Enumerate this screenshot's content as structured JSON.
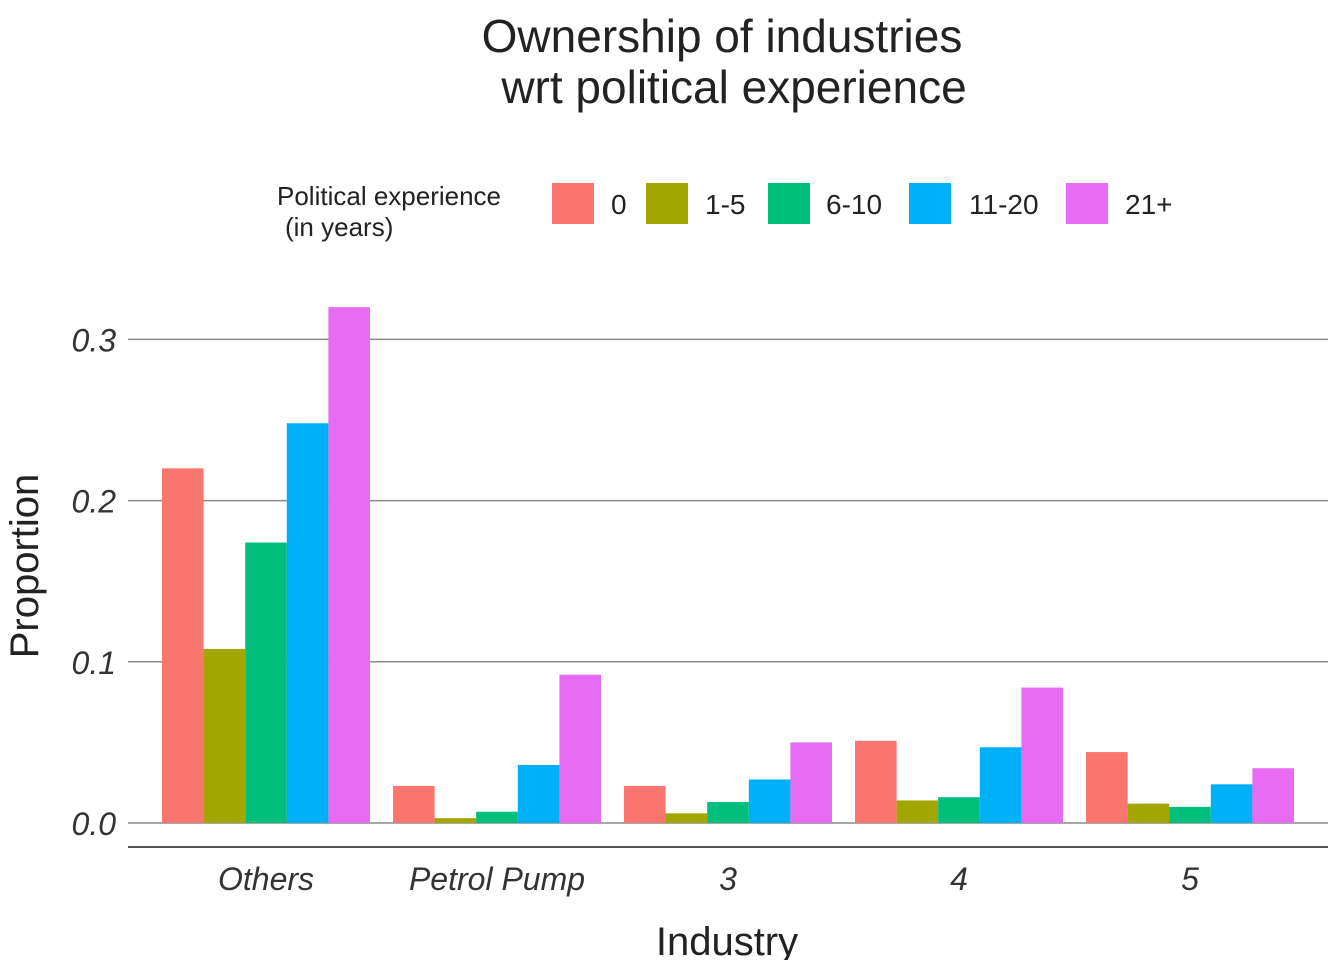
{
  "chart_data": {
    "type": "bar",
    "title_lines": [
      "Ownership of industries",
      "wrt political experience"
    ],
    "xlabel": "Industry",
    "ylabel": "Proportion",
    "legend": {
      "title_lines": [
        "Political experience",
        "(in years)"
      ],
      "position": "top"
    },
    "categories": [
      "Others",
      "Petrol Pump",
      "3",
      "4",
      "5"
    ],
    "series": [
      {
        "name": "0",
        "color": "#F8766D",
        "values": [
          0.22,
          0.023,
          0.023,
          0.051,
          0.044
        ]
      },
      {
        "name": "1-5",
        "color": "#A3A500",
        "values": [
          0.108,
          0.003,
          0.006,
          0.014,
          0.012
        ]
      },
      {
        "name": "6-10",
        "color": "#00BF7D",
        "values": [
          0.174,
          0.007,
          0.013,
          0.016,
          0.01
        ]
      },
      {
        "name": "11-20",
        "color": "#00B0F6",
        "values": [
          0.248,
          0.036,
          0.027,
          0.047,
          0.024
        ]
      },
      {
        "name": "21+",
        "color": "#E76BF3",
        "values": [
          0.32,
          0.092,
          0.05,
          0.084,
          0.034
        ]
      }
    ],
    "y_ticks": [
      0.0,
      0.1,
      0.2,
      0.3
    ],
    "y_tick_labels": [
      "0.0",
      "0.1",
      "0.2",
      "0.3"
    ],
    "ylim": [
      -0.015,
      0.34
    ],
    "grid": true
  }
}
